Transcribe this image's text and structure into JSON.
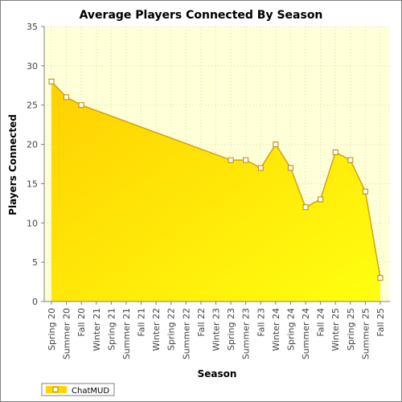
{
  "chart_data": {
    "type": "area",
    "title": "Average Players Connected By Season",
    "xlabel": "Season",
    "ylabel": "Players Connected",
    "ylim": [
      0,
      35
    ],
    "yticks": [
      0,
      5,
      10,
      15,
      20,
      25,
      30,
      35
    ],
    "grid": true,
    "legend_position": "bottom-left",
    "categories": [
      "Spring 20",
      "Summer 20",
      "Fall 20",
      "Winter 21",
      "Spring 21",
      "Summer 21",
      "Fall 21",
      "Winter 22",
      "Spring 22",
      "Summer 22",
      "Fall 22",
      "Winter 23",
      "Spring 23",
      "Summer 23",
      "Fall 23",
      "Winter 24",
      "Spring 24",
      "Summer 24",
      "Fall 24",
      "Winter 25",
      "Spring 25",
      "Summer 25",
      "Fall 25"
    ],
    "series": [
      {
        "name": "ChatMUD",
        "color": "#ffd700",
        "points": [
          {
            "x": "Spring 20",
            "y": 28
          },
          {
            "x": "Summer 20",
            "y": 26
          },
          {
            "x": "Fall 20",
            "y": 25
          },
          {
            "x": "Spring 23",
            "y": 18
          },
          {
            "x": "Summer 23",
            "y": 18
          },
          {
            "x": "Fall 23",
            "y": 17
          },
          {
            "x": "Winter 24",
            "y": 20
          },
          {
            "x": "Spring 24",
            "y": 17
          },
          {
            "x": "Summer 24",
            "y": 12
          },
          {
            "x": "Fall 24",
            "y": 13
          },
          {
            "x": "Winter 25",
            "y": 19
          },
          {
            "x": "Spring 25",
            "y": 18
          },
          {
            "x": "Summer 25",
            "y": 14
          },
          {
            "x": "Fall 25",
            "y": 3
          }
        ]
      }
    ]
  },
  "colors": {
    "plot_background": "#ffffd8",
    "area_fill_top": "#ffd000",
    "area_fill_bottom": "#ffff10",
    "area_stroke": "#d4a017",
    "marker_fill": "#ffffff",
    "marker_stroke": "#b8860b"
  }
}
